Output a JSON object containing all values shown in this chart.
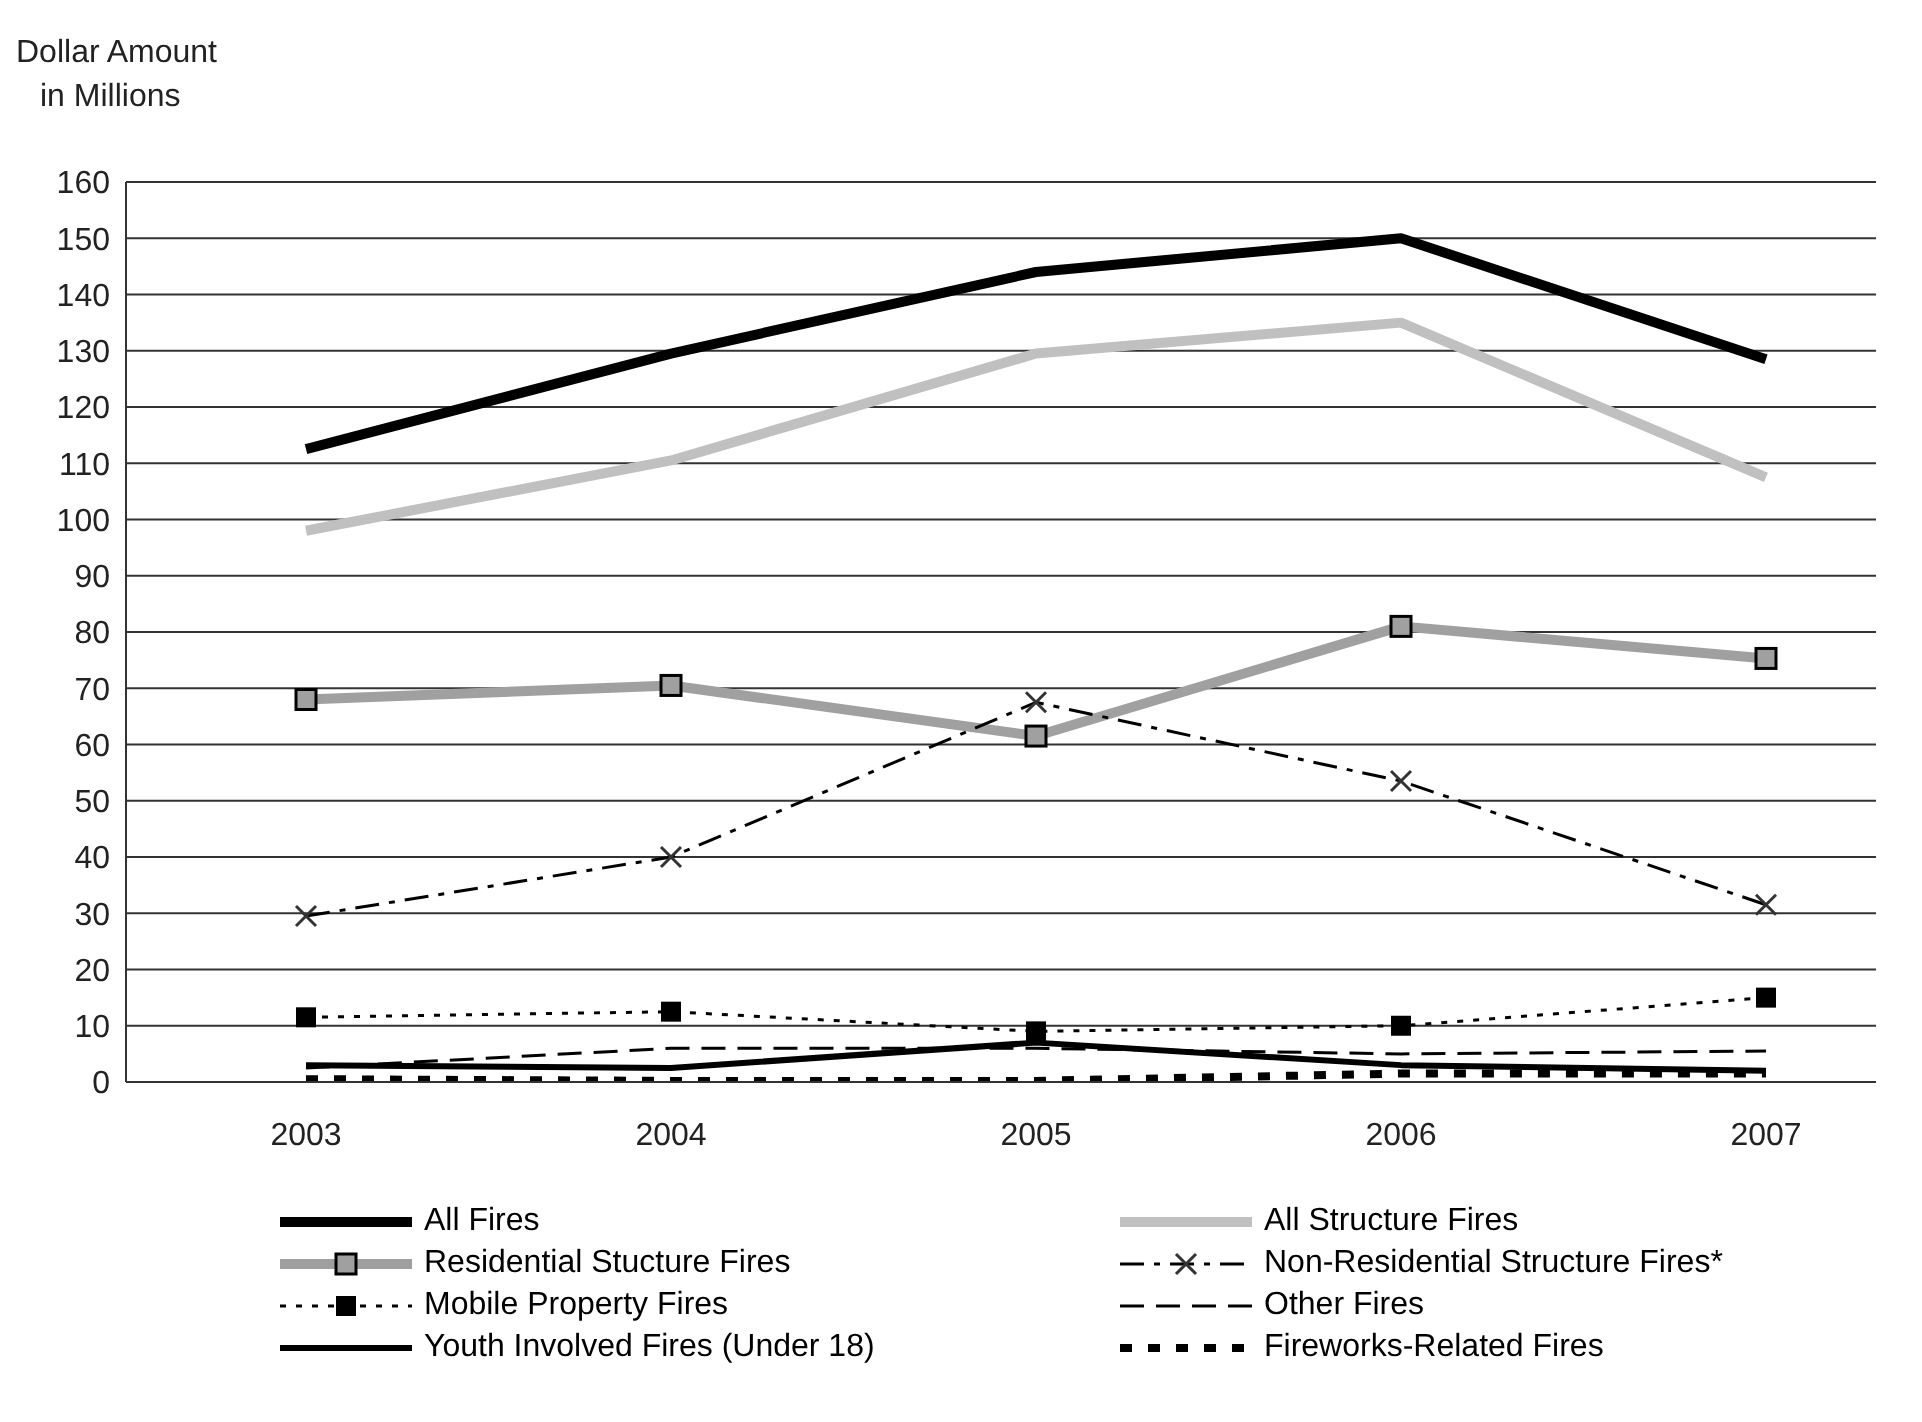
{
  "chart_data": {
    "type": "line",
    "ylabel": "Dollar Amount\nin Millions",
    "categories": [
      "2003",
      "2004",
      "2005",
      "2006",
      "2007"
    ],
    "series": [
      {
        "name": "All Fires",
        "color": "#000000",
        "values": [
          112.5,
          129.5,
          144,
          150,
          128.5
        ],
        "line_style": "solid",
        "marker": "none"
      },
      {
        "name": "All Structure Fires",
        "color": "#c0c0c0",
        "values": [
          98,
          110.5,
          129.5,
          135,
          107.5
        ],
        "line_style": "solid",
        "marker": "none"
      },
      {
        "name": "Residential Stucture Fires",
        "color": "#a0a0a0",
        "values": [
          68,
          70.5,
          61.5,
          81,
          75.3
        ],
        "line_style": "solid",
        "marker": "square"
      },
      {
        "name": "Non-Residential Structure Fires*",
        "color": "#000000",
        "values": [
          29.5,
          40,
          67.5,
          53.5,
          31.5
        ],
        "line_style": "dashed",
        "marker": "cross"
      },
      {
        "name": "Mobile Property Fires",
        "color": "#000000",
        "values": [
          11.5,
          12.5,
          9,
          10,
          15
        ],
        "line_style": "dotted",
        "marker": "square"
      },
      {
        "name": "Other Fires",
        "color": "#000000",
        "values": [
          2.5,
          6,
          6,
          5,
          5.5
        ],
        "line_style": "dashed",
        "marker": "none"
      },
      {
        "name": "Youth Involved Fires (Under 18)",
        "color": "#000000",
        "values": [
          3,
          2.5,
          7,
          3,
          2
        ],
        "line_style": "solid",
        "marker": "none"
      },
      {
        "name": "Fireworks-Related Fires",
        "color": "#000000",
        "values": [
          0.5,
          0.2,
          0.2,
          1.5,
          1.5
        ],
        "line_style": "dotted",
        "marker": "none"
      }
    ],
    "ylim": [
      0,
      160
    ],
    "yticks": [
      0,
      10,
      20,
      30,
      40,
      50,
      60,
      70,
      80,
      90,
      100,
      110,
      120,
      130,
      140,
      150,
      160
    ],
    "grid": "y",
    "legend": "bottom"
  }
}
